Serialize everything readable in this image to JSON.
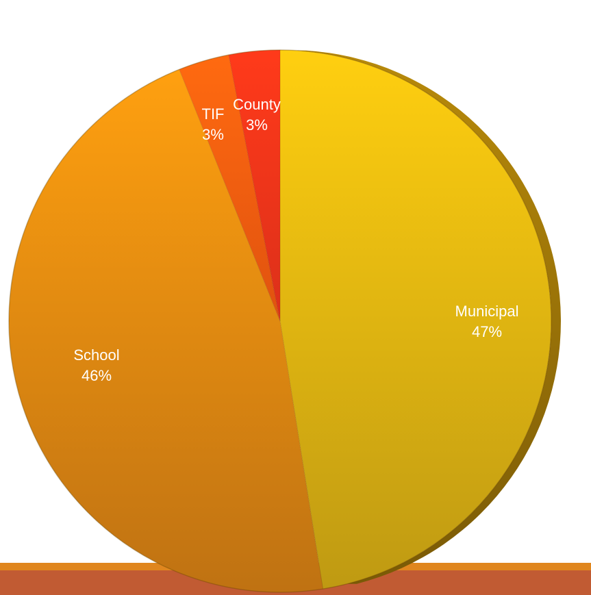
{
  "chart_data": {
    "type": "pie",
    "style": "3d",
    "slices": [
      {
        "label": "Municipal",
        "value": 47,
        "pct_label": "47%",
        "color": "#e8b40a"
      },
      {
        "label": "School",
        "value": 46,
        "pct_label": "46%",
        "color": "#f08a10"
      },
      {
        "label": "TIF",
        "value": 3,
        "pct_label": "3%",
        "color": "#f35c12"
      },
      {
        "label": "County",
        "value": 3,
        "pct_label": "3%",
        "color": "#ef3a1c"
      }
    ]
  },
  "decor": {
    "band_top_color": "#e0861e",
    "band_bottom_color": "#c15b33"
  }
}
